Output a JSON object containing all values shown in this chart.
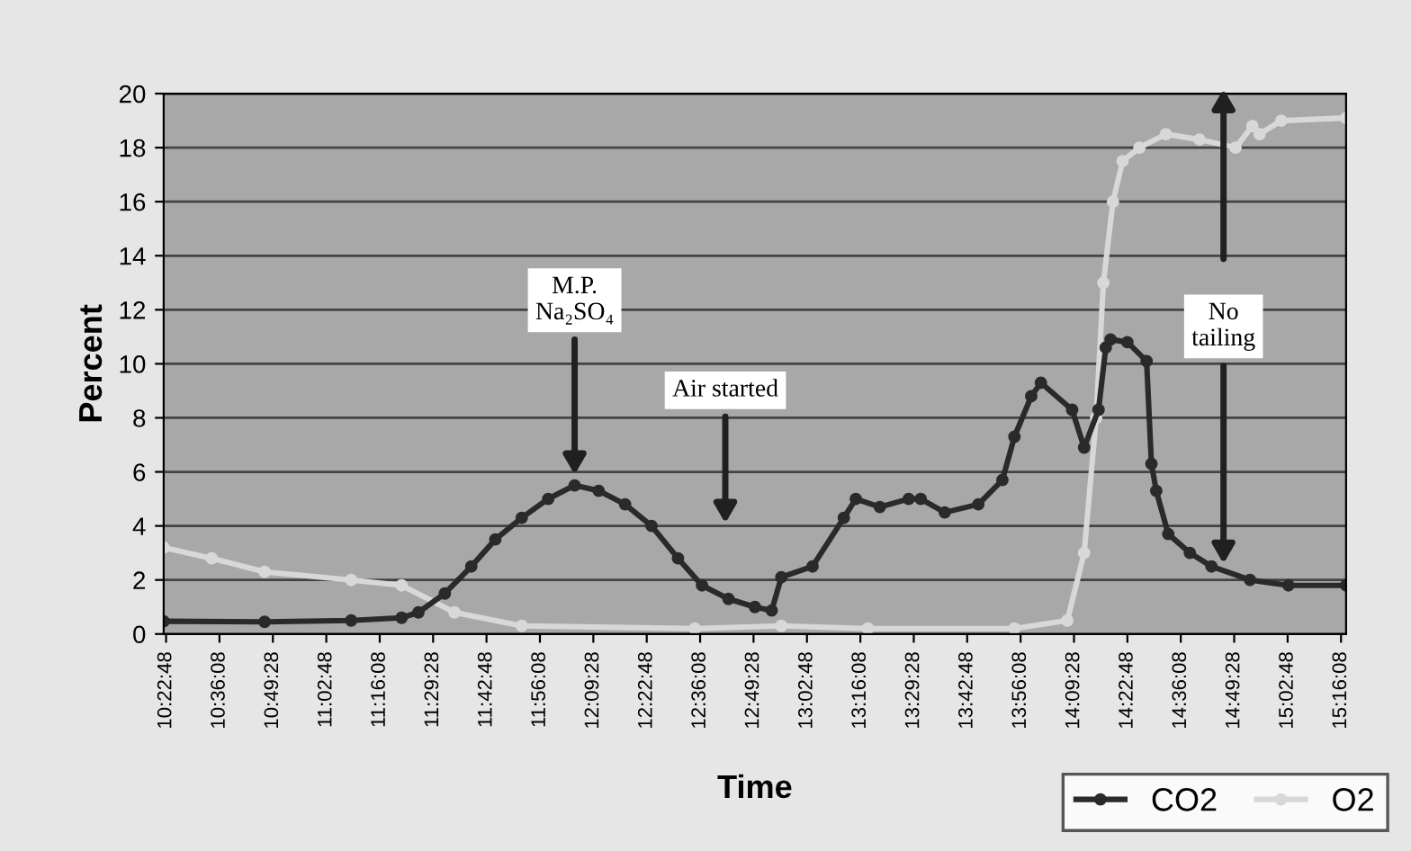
{
  "chart_data": {
    "type": "line",
    "xlabel": "Time",
    "ylabel": "Percent",
    "xlim": [
      10.37,
      15.29
    ],
    "ylim": [
      0,
      20
    ],
    "yticks": [
      0,
      2,
      4,
      6,
      8,
      10,
      12,
      14,
      16,
      18,
      20
    ],
    "xticks": [
      {
        "value": 10.38,
        "label": "10:22:48"
      },
      {
        "value": 10.6022,
        "label": "10:36:08"
      },
      {
        "value": 10.8244,
        "label": "10:49:28"
      },
      {
        "value": 11.0467,
        "label": "11:02:48"
      },
      {
        "value": 11.2689,
        "label": "11:16:08"
      },
      {
        "value": 11.4911,
        "label": "11:29:28"
      },
      {
        "value": 11.7133,
        "label": "11:42:48"
      },
      {
        "value": 11.9356,
        "label": "11:56:08"
      },
      {
        "value": 12.1578,
        "label": "12:09:28"
      },
      {
        "value": 12.38,
        "label": "12:22:48"
      },
      {
        "value": 12.6022,
        "label": "12:36:08"
      },
      {
        "value": 12.8244,
        "label": "12:49:28"
      },
      {
        "value": 13.0467,
        "label": "13:02:48"
      },
      {
        "value": 13.2689,
        "label": "13:16:08"
      },
      {
        "value": 13.4911,
        "label": "13:29:28"
      },
      {
        "value": 13.7133,
        "label": "13:42:48"
      },
      {
        "value": 13.9356,
        "label": "13:56:08"
      },
      {
        "value": 14.1578,
        "label": "14:09:28"
      },
      {
        "value": 14.38,
        "label": "14:22:48"
      },
      {
        "value": 14.6022,
        "label": "14:36:08"
      },
      {
        "value": 14.8244,
        "label": "14:49:28"
      },
      {
        "value": 15.0467,
        "label": "15:02:48"
      },
      {
        "value": 15.2689,
        "label": "15:16:08"
      }
    ],
    "grid": "y",
    "legend": "bottom right",
    "marker": "circle",
    "series": [
      {
        "name": "O2",
        "color": "#d8d8d8",
        "x": [
          10.37,
          10.57,
          10.79,
          11.15,
          11.36,
          11.58,
          11.86,
          12.58,
          12.94,
          13.3,
          13.91,
          14.13,
          14.2,
          14.25,
          14.28,
          14.32,
          14.36,
          14.43,
          14.54,
          14.68,
          14.83,
          14.9,
          14.93,
          15.02,
          15.29
        ],
        "values": [
          3.2,
          2.8,
          2.3,
          2.0,
          1.8,
          0.8,
          0.3,
          0.2,
          0.3,
          0.2,
          0.2,
          0.5,
          3,
          8,
          13,
          16,
          17.5,
          18,
          18.5,
          18.3,
          18.0,
          18.8,
          18.5,
          19,
          19.1
        ]
      },
      {
        "name": "CO2",
        "color": "#2a2a2a",
        "x": [
          10.37,
          10.79,
          11.15,
          11.36,
          11.43,
          11.54,
          11.65,
          11.75,
          11.86,
          11.97,
          12.08,
          12.18,
          12.29,
          12.4,
          12.51,
          12.61,
          12.72,
          12.83,
          12.9,
          12.94,
          13.07,
          13.2,
          13.25,
          13.35,
          13.47,
          13.52,
          13.62,
          13.76,
          13.86,
          13.91,
          13.98,
          14.02,
          14.15,
          14.2,
          14.26,
          14.29,
          14.31,
          14.38,
          14.46,
          14.48,
          14.5,
          14.55,
          14.64,
          14.73,
          14.89,
          15.05,
          15.29
        ],
        "values": [
          0.47,
          0.45,
          0.5,
          0.6,
          0.8,
          1.5,
          2.5,
          3.5,
          4.3,
          5.0,
          5.5,
          5.3,
          4.8,
          4.0,
          2.8,
          1.8,
          1.3,
          1.0,
          0.87,
          2.1,
          2.5,
          4.3,
          5.0,
          4.7,
          5.0,
          5.0,
          4.5,
          4.8,
          5.7,
          7.3,
          8.8,
          9.3,
          8.3,
          6.9,
          8.3,
          10.6,
          10.9,
          10.8,
          10.1,
          6.3,
          5.3,
          3.7,
          3.0,
          2.5,
          2.0,
          1.8,
          1.8
        ]
      }
    ],
    "annotations": [
      {
        "text": "M.P.\nNa₂SO₄",
        "x": 12.08,
        "y": 5.9
      },
      "Air started",
      {
        "text": "No\ntailing",
        "x": 14.78,
        "y": 2.6
      }
    ]
  }
}
